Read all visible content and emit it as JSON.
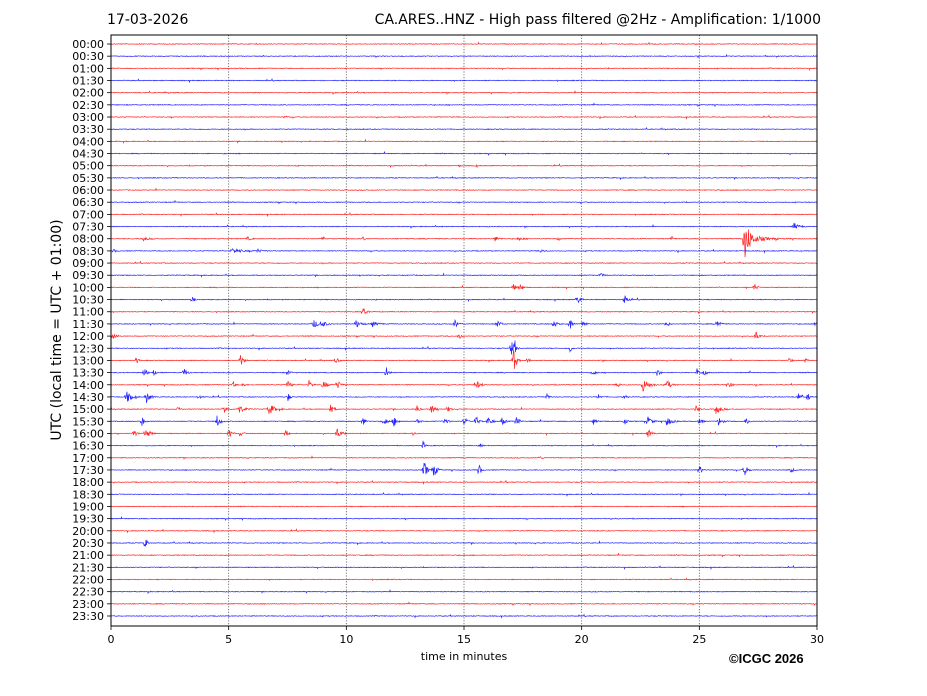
{
  "header": {
    "date": "17-03-2026",
    "title": "CA.ARES..HNZ - High pass filtered @2Hz - Amplification: 1/1000"
  },
  "footer": {
    "copyright": "©ICGC 2026"
  },
  "chart_data": {
    "type": "line",
    "title": "CA.ARES..HNZ - High pass filtered @2Hz - Amplification: 1/1000",
    "xlabel": "time in minutes",
    "ylabel": "UTC (local time = UTC + 01:00)",
    "xlim": [
      0,
      30
    ],
    "xticks": [
      0,
      5,
      10,
      15,
      20,
      25,
      30
    ],
    "grid": "vertical dotted at x ticks",
    "trace_colors": [
      "#ff0000",
      "#0000ff"
    ],
    "rows": [
      "00:00",
      "00:30",
      "01:00",
      "01:30",
      "02:00",
      "02:30",
      "03:00",
      "03:30",
      "04:00",
      "04:30",
      "05:00",
      "05:30",
      "06:00",
      "06:30",
      "07:00",
      "07:30",
      "08:00",
      "08:30",
      "09:00",
      "09:30",
      "10:00",
      "10:30",
      "11:00",
      "11:30",
      "12:00",
      "12:30",
      "13:00",
      "13:30",
      "14:00",
      "14:30",
      "15:00",
      "15:30",
      "16:00",
      "16:30",
      "17:00",
      "17:30",
      "18:00",
      "18:30",
      "19:00",
      "19:30",
      "20:00",
      "20:30",
      "21:00",
      "21:30",
      "22:00",
      "22:30",
      "23:00",
      "23:30"
    ],
    "events_note_fields": [
      "row",
      "minute",
      "relative_amplitude",
      "duration_minutes"
    ],
    "events": [
      [
        "03:00",
        7.4,
        2,
        0.05
      ],
      [
        "05:00",
        14.8,
        1,
        0.05
      ],
      [
        "05:00",
        15.5,
        1,
        0.05
      ],
      [
        "06:00",
        25.7,
        1,
        0.05
      ],
      [
        "07:30",
        29.0,
        4,
        0.3
      ],
      [
        "08:00",
        26.9,
        25,
        0.4
      ],
      [
        "08:00",
        1.36,
        2,
        0.3
      ],
      [
        "08:00",
        5.8,
        2,
        0.2
      ],
      [
        "08:00",
        9.0,
        2,
        0.1
      ],
      [
        "08:00",
        10.7,
        2,
        0.1
      ],
      [
        "08:00",
        16.3,
        3,
        0.2
      ],
      [
        "08:00",
        17.3,
        2,
        0.2
      ],
      [
        "08:00",
        19.0,
        2,
        0.1
      ],
      [
        "08:00",
        23.8,
        2,
        0.1
      ],
      [
        "08:00",
        27.6,
        2,
        0.8
      ],
      [
        "08:30",
        0.1,
        2,
        0.1
      ],
      [
        "08:30",
        5.1,
        3,
        0.6
      ],
      [
        "08:30",
        6.2,
        2,
        0.3
      ],
      [
        "08:30",
        18.2,
        2,
        0.2
      ],
      [
        "09:30",
        20.8,
        2,
        0.2
      ],
      [
        "10:00",
        17.1,
        4,
        0.1
      ],
      [
        "10:00",
        17.4,
        4,
        0.1
      ],
      [
        "10:00",
        27.3,
        5,
        0.15
      ],
      [
        "10:30",
        3.45,
        5,
        0.08
      ],
      [
        "10:30",
        19.8,
        5,
        0.15
      ],
      [
        "10:30",
        21.8,
        6,
        0.15
      ],
      [
        "11:00",
        10.7,
        4,
        0.15
      ],
      [
        "11:30",
        8.6,
        6,
        0.2
      ],
      [
        "11:30",
        8.95,
        5,
        0.2
      ],
      [
        "11:30",
        10.4,
        4,
        0.3
      ],
      [
        "11:30",
        11.1,
        3,
        0.3
      ],
      [
        "11:30",
        14.6,
        5,
        0.2
      ],
      [
        "11:30",
        16.4,
        5,
        0.15
      ],
      [
        "11:30",
        18.8,
        5,
        0.15
      ],
      [
        "11:30",
        19.5,
        8,
        0.08
      ],
      [
        "11:30",
        20.0,
        5,
        0.15
      ],
      [
        "11:30",
        23.6,
        4,
        0.1
      ],
      [
        "11:30",
        25.75,
        7,
        0.12
      ],
      [
        "11:30",
        29.95,
        5,
        0.1
      ],
      [
        "12:00",
        0.1,
        6,
        0.1
      ],
      [
        "12:00",
        14.8,
        5,
        0.08
      ],
      [
        "12:00",
        27.4,
        6,
        0.1
      ],
      [
        "12:30",
        17.0,
        10,
        0.08
      ],
      [
        "12:30",
        17.15,
        8,
        0.08
      ],
      [
        "12:30",
        19.5,
        5,
        0.05
      ],
      [
        "13:00",
        1.1,
        5,
        0.05
      ],
      [
        "13:00",
        5.5,
        6,
        0.15
      ],
      [
        "13:00",
        9.55,
        4,
        0.1
      ],
      [
        "13:00",
        17.1,
        14,
        0.12
      ],
      [
        "13:00",
        17.7,
        4,
        0.05
      ],
      [
        "13:00",
        28.8,
        4,
        0.1
      ],
      [
        "13:00",
        29.5,
        4,
        0.05
      ],
      [
        "13:30",
        1.4,
        6,
        0.12
      ],
      [
        "13:30",
        1.8,
        4,
        0.08
      ],
      [
        "13:30",
        3.1,
        5,
        0.15
      ],
      [
        "13:30",
        7.5,
        4,
        0.1
      ],
      [
        "13:30",
        11.7,
        7,
        0.08
      ],
      [
        "13:30",
        20.5,
        4,
        0.08
      ],
      [
        "13:30",
        23.2,
        5,
        0.1
      ],
      [
        "13:30",
        24.9,
        4,
        0.1
      ],
      [
        "13:30",
        25.2,
        5,
        0.08
      ],
      [
        "14:00",
        5.2,
        4,
        0.05
      ],
      [
        "14:00",
        5.6,
        4,
        0.05
      ],
      [
        "14:00",
        7.5,
        5,
        0.15
      ],
      [
        "14:00",
        8.4,
        5,
        0.15
      ],
      [
        "14:00",
        9.0,
        5,
        0.2
      ],
      [
        "14:00",
        9.6,
        5,
        0.2
      ],
      [
        "14:00",
        15.5,
        6,
        0.2
      ],
      [
        "14:00",
        21.5,
        4,
        0.1
      ],
      [
        "14:00",
        22.6,
        7,
        0.35
      ],
      [
        "14:00",
        23.6,
        6,
        0.2
      ],
      [
        "14:00",
        26.2,
        5,
        0.15
      ],
      [
        "14:30",
        0.65,
        6,
        0.3
      ],
      [
        "14:30",
        1.5,
        6,
        0.2
      ],
      [
        "14:30",
        3.7,
        3,
        0.1
      ],
      [
        "14:30",
        7.5,
        6,
        0.08
      ],
      [
        "14:30",
        18.5,
        5,
        0.08
      ],
      [
        "14:30",
        20.7,
        4,
        0.08
      ],
      [
        "14:30",
        21.8,
        4,
        0.08
      ],
      [
        "14:30",
        29.2,
        5,
        0.1
      ],
      [
        "14:30",
        29.6,
        5,
        0.08
      ],
      [
        "15:00",
        2.85,
        4,
        0.05
      ],
      [
        "15:00",
        4.8,
        5,
        0.15
      ],
      [
        "15:00",
        5.4,
        5,
        0.3
      ],
      [
        "15:00",
        6.7,
        6,
        0.35
      ],
      [
        "15:00",
        9.3,
        5,
        0.2
      ],
      [
        "15:00",
        13.0,
        5,
        0.08
      ],
      [
        "15:00",
        13.6,
        6,
        0.15
      ],
      [
        "15:00",
        14.3,
        4,
        0.1
      ],
      [
        "15:00",
        24.85,
        4,
        0.1
      ],
      [
        "15:00",
        25.7,
        5,
        0.3
      ],
      [
        "15:30",
        1.3,
        6,
        0.1
      ],
      [
        "15:30",
        4.5,
        6,
        0.2
      ],
      [
        "15:30",
        10.7,
        5,
        0.1
      ],
      [
        "15:30",
        11.6,
        5,
        0.15
      ],
      [
        "15:30",
        12.0,
        6,
        0.2
      ],
      [
        "15:30",
        13.0,
        5,
        0.1
      ],
      [
        "15:30",
        14.2,
        6,
        0.1
      ],
      [
        "15:30",
        15.0,
        6,
        0.1
      ],
      [
        "15:30",
        15.5,
        6,
        0.15
      ],
      [
        "15:30",
        16.0,
        6,
        0.2
      ],
      [
        "15:30",
        16.6,
        5,
        0.15
      ],
      [
        "15:30",
        17.2,
        6,
        0.15
      ],
      [
        "15:30",
        20.5,
        4,
        0.08
      ],
      [
        "15:30",
        21.8,
        5,
        0.1
      ],
      [
        "15:30",
        22.8,
        7,
        0.2
      ],
      [
        "15:30",
        23.6,
        5,
        0.3
      ],
      [
        "15:30",
        25.0,
        5,
        0.1
      ],
      [
        "15:30",
        25.8,
        5,
        0.2
      ],
      [
        "15:30",
        27.0,
        5,
        0.1
      ],
      [
        "16:00",
        0.95,
        5,
        0.12
      ],
      [
        "16:00",
        1.45,
        6,
        0.25
      ],
      [
        "16:00",
        5.0,
        6,
        0.12
      ],
      [
        "16:00",
        5.5,
        5,
        0.08
      ],
      [
        "16:00",
        7.4,
        7,
        0.08
      ],
      [
        "16:00",
        9.6,
        6,
        0.2
      ],
      [
        "16:00",
        12.8,
        3,
        0.08
      ],
      [
        "16:00",
        22.8,
        5,
        0.2
      ],
      [
        "16:30",
        13.25,
        5,
        0.08
      ],
      [
        "16:30",
        15.7,
        2,
        0.05
      ],
      [
        "17:00",
        18.2,
        2,
        0.1
      ],
      [
        "17:30",
        13.3,
        10,
        0.15
      ],
      [
        "17:30",
        13.7,
        7,
        0.2
      ],
      [
        "17:30",
        15.6,
        10,
        0.08
      ],
      [
        "17:30",
        25.0,
        6,
        0.08
      ],
      [
        "17:30",
        26.9,
        7,
        0.15
      ],
      [
        "17:30",
        28.8,
        3,
        0.3
      ],
      [
        "20:30",
        1.45,
        9,
        0.05
      ]
    ]
  }
}
